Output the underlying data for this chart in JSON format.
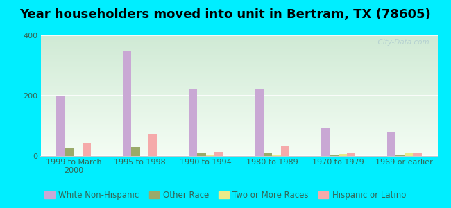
{
  "title": "Year householders moved into unit in Bertram, TX (78605)",
  "categories": [
    "1999 to March\n2000",
    "1995 to 1998",
    "1990 to 1994",
    "1980 to 1989",
    "1970 to 1979",
    "1969 or earlier"
  ],
  "series": {
    "White Non-Hispanic": [
      197,
      348,
      224,
      222,
      93,
      78
    ],
    "Other Race": [
      28,
      30,
      11,
      12,
      3,
      3
    ],
    "Two or More Races": [
      0,
      0,
      5,
      5,
      7,
      12
    ],
    "Hispanic or Latino": [
      43,
      73,
      14,
      34,
      12,
      10
    ]
  },
  "colors": {
    "White Non-Hispanic": "#c9a8d4",
    "Other Race": "#9aaa6a",
    "Two or More Races": "#eaea88",
    "Hispanic or Latino": "#f5aaaa"
  },
  "ylim": [
    0,
    400
  ],
  "yticks": [
    0,
    200,
    400
  ],
  "bar_width": 0.13,
  "outer_bg": "#00eeff",
  "watermark": "  City-Data.com",
  "title_fontsize": 13,
  "legend_fontsize": 8.5,
  "tick_fontsize": 8,
  "label_color": "#336655"
}
